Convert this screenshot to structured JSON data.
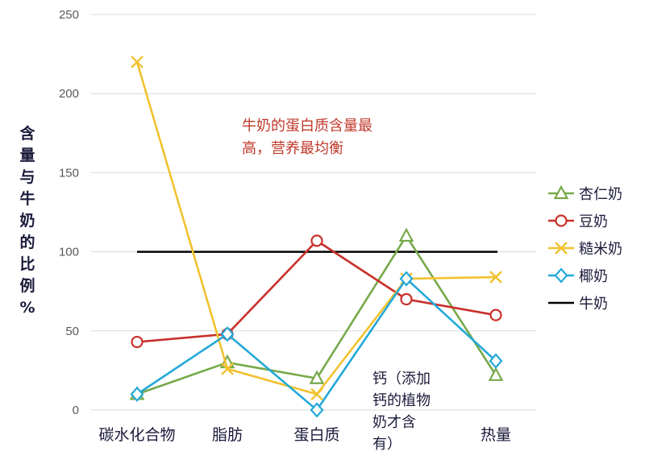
{
  "chart_data": {
    "type": "line",
    "categories": [
      "碳水化合物",
      "脂肪",
      "蛋白质",
      "钙（添加钙的植物奶才含有）",
      "热量"
    ],
    "category_labels": [
      "碳水化合物",
      "脂肪",
      "蛋白质",
      "",
      "热量"
    ],
    "ylabel": "含量与牛奶的比例%",
    "ylim": [
      0,
      250
    ],
    "yticks": [
      "0",
      "50",
      "100",
      "150",
      "200",
      "250"
    ],
    "grid": true,
    "legend_position": "right",
    "series": [
      {
        "name": "杏仁奶",
        "color": "#77a94a",
        "marker": "triangle",
        "values": [
          10,
          30,
          20,
          110,
          22
        ]
      },
      {
        "name": "豆奶",
        "color": "#c8302a",
        "marker": "circle",
        "values": [
          43,
          48,
          107,
          70,
          60
        ]
      },
      {
        "name": "糙米奶",
        "color": "#f2c12e",
        "marker": "x",
        "values": [
          220,
          26,
          10,
          83,
          84
        ]
      },
      {
        "name": "椰奶",
        "color": "#24a9d8",
        "marker": "diamond",
        "values": [
          10,
          48,
          0,
          83,
          31
        ]
      }
    ],
    "reference_line": {
      "name": "牛奶",
      "value": 100,
      "color": "#000000"
    },
    "annotations": {
      "red_lines": [
        "牛奶的蛋白质含量最",
        "高，营养最均衡"
      ],
      "calcium_lines": [
        "钙（添加",
        "钙的植物",
        "奶才含",
        "有）"
      ]
    }
  }
}
